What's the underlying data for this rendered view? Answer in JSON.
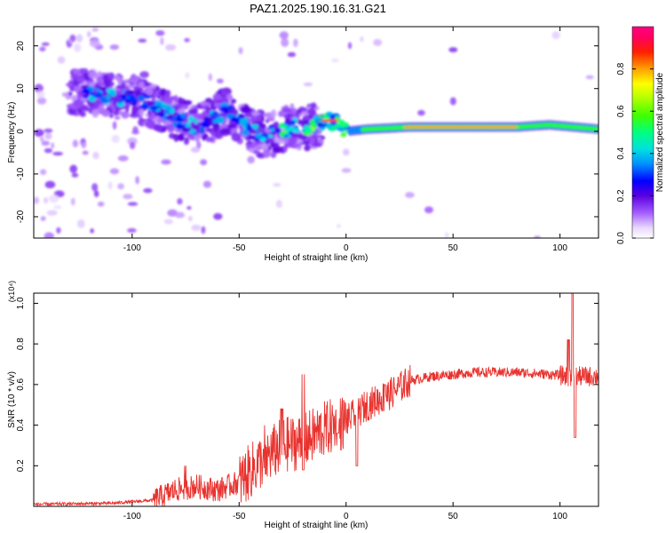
{
  "figure": {
    "title": "PAZ1.2025.190.16.31.G21"
  },
  "chart_data": [
    {
      "type": "heatmap",
      "name": "spectrogram",
      "xlabel": "Height of straight line (km)",
      "ylabel": "Frequency (Hz)",
      "xlim": [
        -146,
        118
      ],
      "ylim": [
        -25,
        24.5
      ],
      "xticks": [
        -100,
        -50,
        0,
        50,
        100
      ],
      "yticks": [
        -20,
        -10,
        0,
        10,
        20
      ],
      "colorbar": {
        "label": "Normalized spectral amplitude",
        "range": [
          0,
          1
        ],
        "ticks": [
          0.0,
          0.2,
          0.4,
          0.6,
          0.8
        ]
      },
      "ridge": [
        {
          "x": -120,
          "y": 9
        },
        {
          "x": -110,
          "y": 8
        },
        {
          "x": -100,
          "y": 8
        },
        {
          "x": -90,
          "y": 6
        },
        {
          "x": -80,
          "y": 3
        },
        {
          "x": -70,
          "y": 1
        },
        {
          "x": -62,
          "y": 3
        },
        {
          "x": -55,
          "y": 5
        },
        {
          "x": -50,
          "y": 3
        },
        {
          "x": -45,
          "y": 0
        },
        {
          "x": -38,
          "y": -1
        },
        {
          "x": -30,
          "y": 0
        },
        {
          "x": -25,
          "y": 1
        },
        {
          "x": -18,
          "y": 1
        },
        {
          "x": -12,
          "y": 2
        },
        {
          "x": -8,
          "y": 2.5
        },
        {
          "x": -3,
          "y": 2
        },
        {
          "x": 0,
          "y": 0
        },
        {
          "x": 10,
          "y": 0.5
        },
        {
          "x": 30,
          "y": 1
        },
        {
          "x": 60,
          "y": 1
        },
        {
          "x": 80,
          "y": 1
        },
        {
          "x": 95,
          "y": 1.5
        },
        {
          "x": 118,
          "y": 0.5
        }
      ]
    },
    {
      "type": "line",
      "name": "snr",
      "xlabel": "Height of straight line (km)",
      "ylabel": "SNR (10 * v/v)",
      "y_multiplier": "(x10⁴)",
      "xlim": [
        -146,
        118
      ],
      "ylim": [
        0,
        1.05
      ],
      "xticks": [
        -100,
        -50,
        0,
        50,
        100
      ],
      "yticks": [
        0.2,
        0.4,
        0.6,
        0.8,
        1.0
      ],
      "color": "#e8322e",
      "envelope": [
        {
          "x": -146,
          "y": 0.01
        },
        {
          "x": -110,
          "y": 0.015
        },
        {
          "x": -90,
          "y": 0.03
        },
        {
          "x": -80,
          "y": 0.08
        },
        {
          "x": -70,
          "y": 0.1
        },
        {
          "x": -60,
          "y": 0.08
        },
        {
          "x": -50,
          "y": 0.12
        },
        {
          "x": -40,
          "y": 0.22
        },
        {
          "x": -30,
          "y": 0.3
        },
        {
          "x": -20,
          "y": 0.32
        },
        {
          "x": -10,
          "y": 0.38
        },
        {
          "x": 0,
          "y": 0.42
        },
        {
          "x": 10,
          "y": 0.5
        },
        {
          "x": 20,
          "y": 0.55
        },
        {
          "x": 30,
          "y": 0.62
        },
        {
          "x": 40,
          "y": 0.64
        },
        {
          "x": 50,
          "y": 0.65
        },
        {
          "x": 60,
          "y": 0.66
        },
        {
          "x": 80,
          "y": 0.66
        },
        {
          "x": 95,
          "y": 0.65
        },
        {
          "x": 105,
          "y": 0.64
        },
        {
          "x": 118,
          "y": 0.64
        }
      ],
      "peaks": [
        {
          "x": -75,
          "y": 0.2
        },
        {
          "x": -38,
          "y": 0.4
        },
        {
          "x": -30,
          "y": 0.48
        },
        {
          "x": -20,
          "y": 0.65
        },
        {
          "x": -4,
          "y": 0.36
        },
        {
          "x": 5,
          "y": 0.5
        },
        {
          "x": 18,
          "y": 0.6
        },
        {
          "x": 104,
          "y": 0.82
        },
        {
          "x": 106,
          "y": 1.05
        }
      ],
      "troughs": [
        {
          "x": -20,
          "y": 0.18
        },
        {
          "x": 5,
          "y": 0.2
        },
        {
          "x": 107,
          "y": 0.34
        }
      ]
    }
  ]
}
